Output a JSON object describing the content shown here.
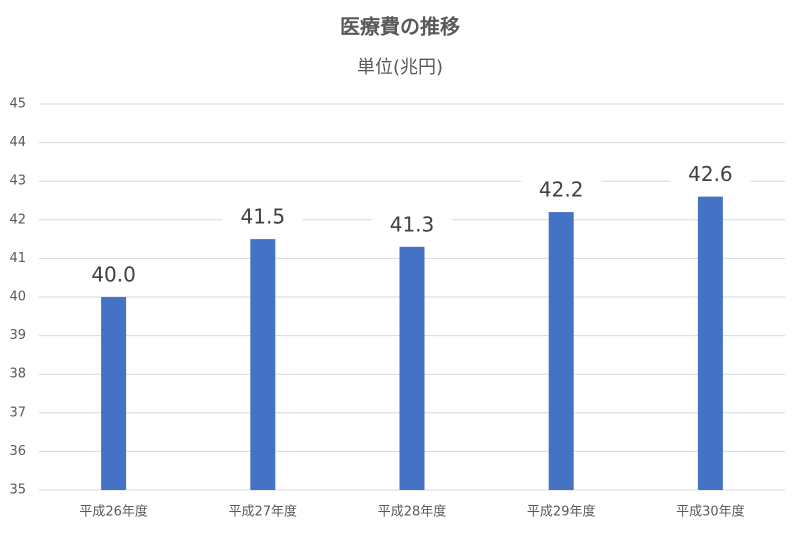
{
  "chart_data": {
    "type": "bar",
    "title": "医療費の推移",
    "subtitle": "単位(兆円)",
    "categories": [
      "平成26年度",
      "平成27年度",
      "平成28年度",
      "平成29年度",
      "平成30年度"
    ],
    "values": [
      40.0,
      41.5,
      41.3,
      42.2,
      42.6
    ],
    "value_labels": [
      "40.0",
      "41.5",
      "41.3",
      "42.2",
      "42.6"
    ],
    "color": "#4472c4",
    "ylim": [
      35,
      45
    ],
    "yticks": [
      35,
      36,
      37,
      38,
      39,
      40,
      41,
      42,
      43,
      44,
      45
    ],
    "grid": true
  }
}
